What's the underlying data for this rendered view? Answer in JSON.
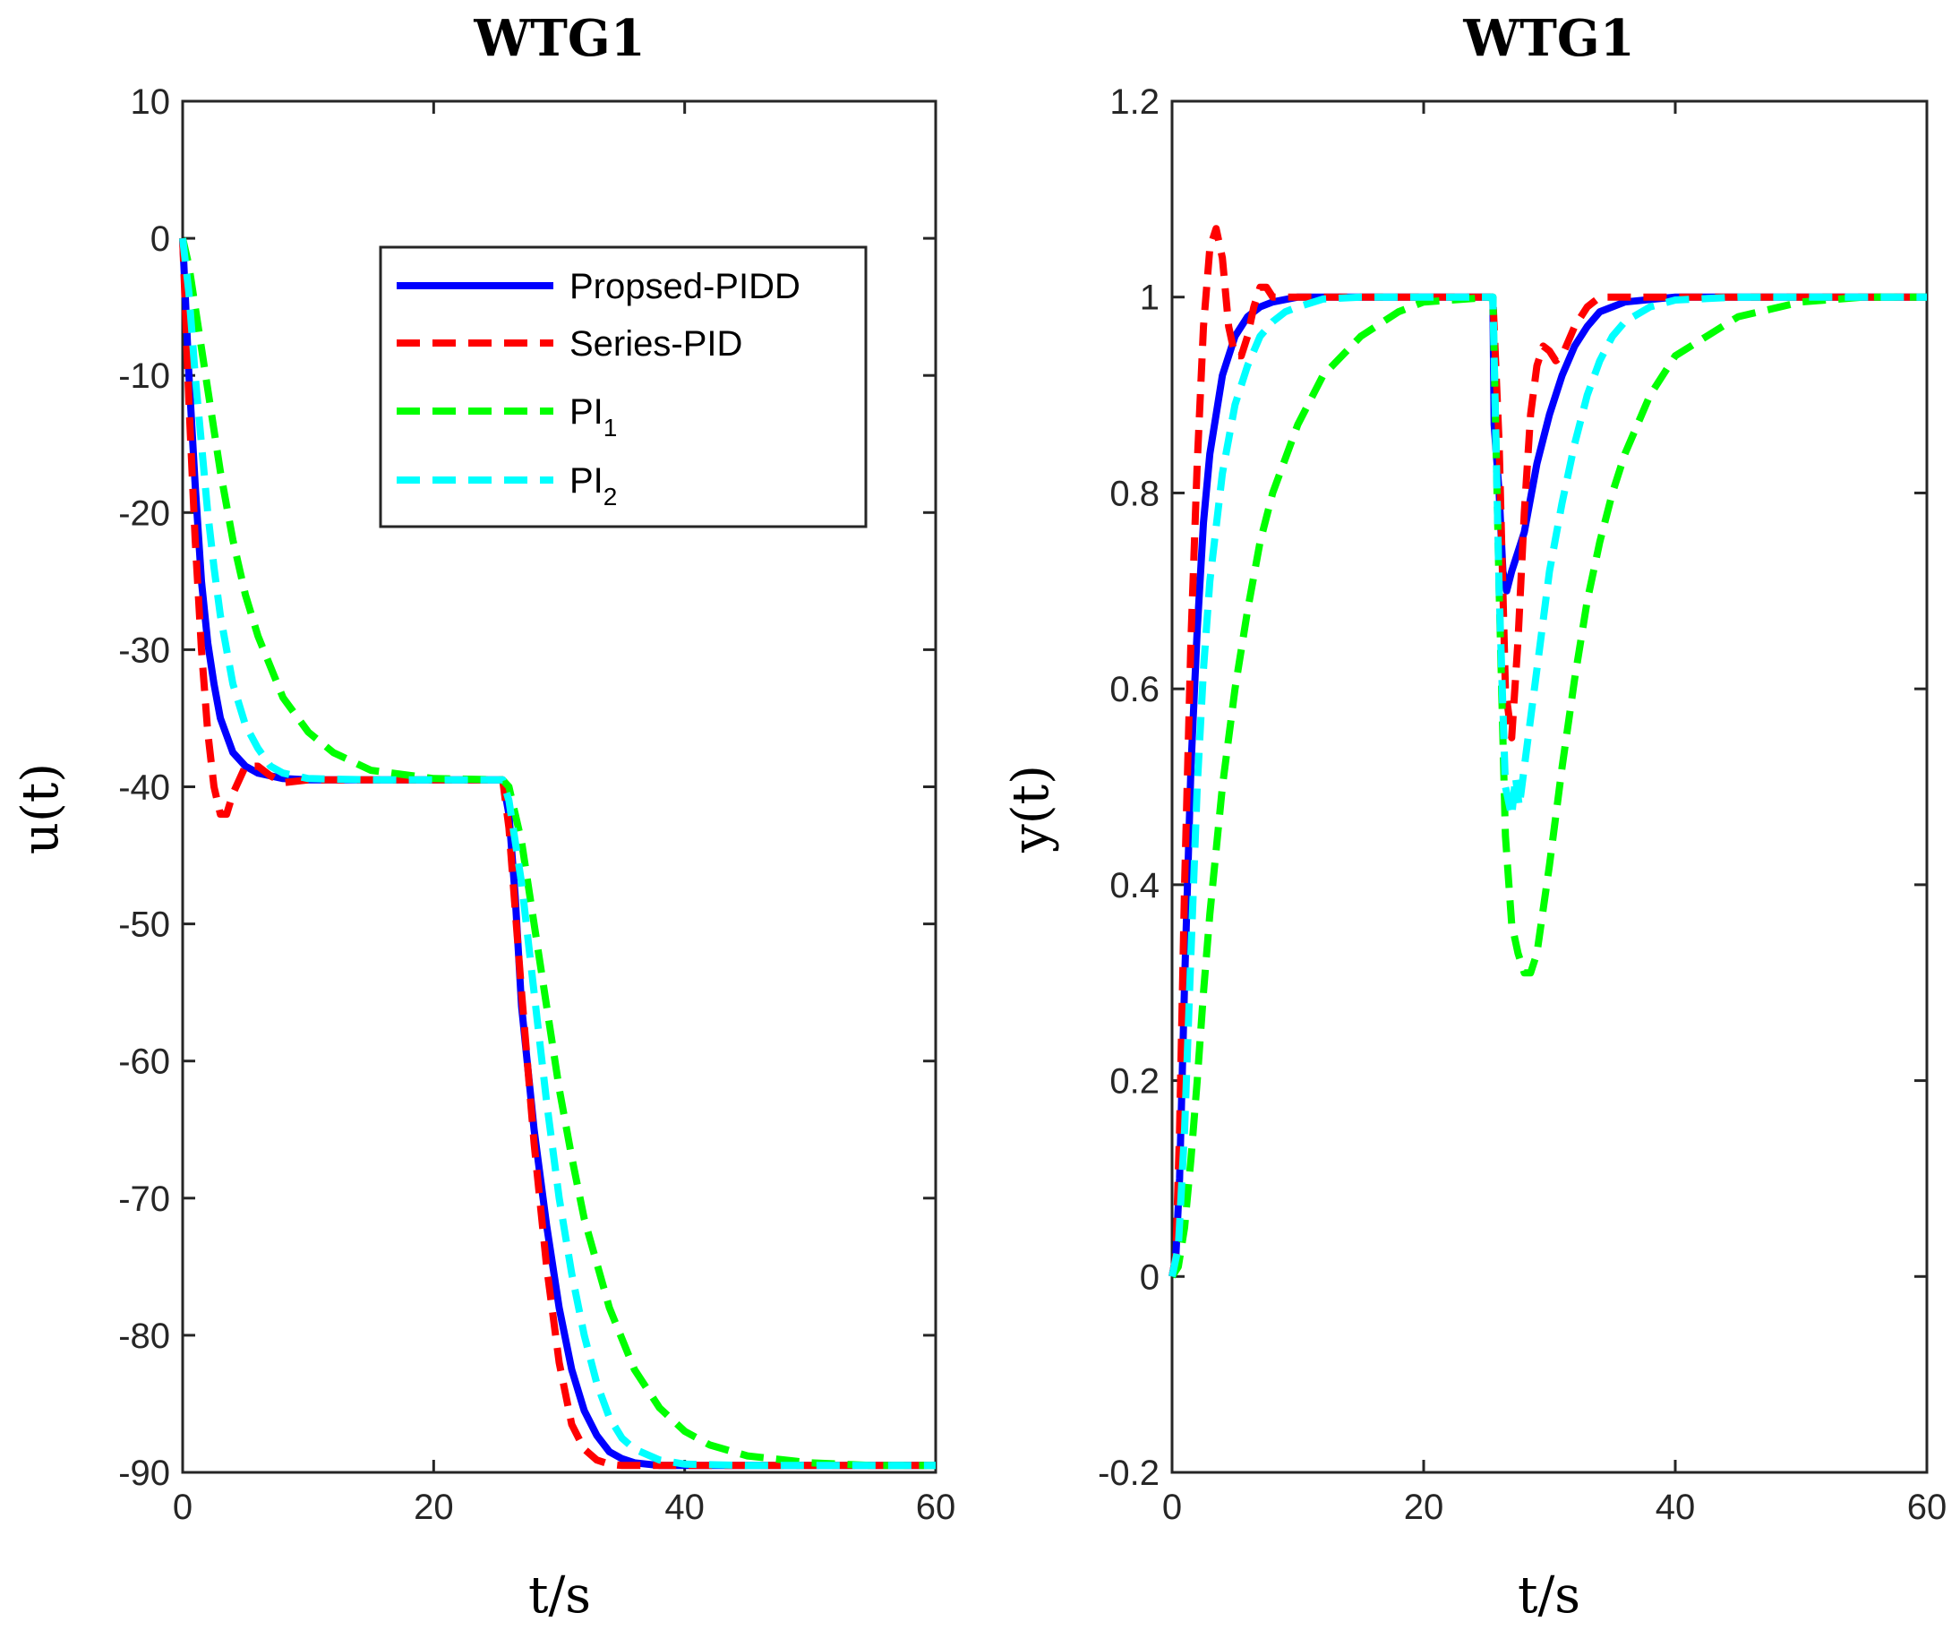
{
  "chart_data": [
    {
      "type": "line",
      "title": "WTG1",
      "xlabel": "t/s",
      "ylabel": "u(t)",
      "xlim": [
        0,
        60
      ],
      "ylim": [
        -90,
        10
      ],
      "xticks": [
        "0",
        "20",
        "40",
        "60"
      ],
      "yticks": [
        "-90",
        "-80",
        "-70",
        "-60",
        "-50",
        "-40",
        "-30",
        "-20",
        "-10",
        "0",
        "10"
      ],
      "grid": false,
      "legend": {
        "location": "top-right",
        "entries": [
          {
            "label": "Propsed-PIDD",
            "sub": ""
          },
          {
            "label": "Series-PID",
            "sub": ""
          },
          {
            "label": "PI",
            "sub": "1"
          },
          {
            "label": "PI",
            "sub": "2"
          }
        ]
      },
      "series": [
        {
          "name": "Propsed-PIDD",
          "color": "#0000ff",
          "style": "solid",
          "x": [
            0,
            0.5,
            1,
            1.5,
            2,
            2.5,
            3,
            4,
            5,
            6,
            8,
            10,
            15,
            20,
            25.5,
            26,
            26.5,
            27,
            28,
            29,
            30,
            31,
            32,
            33,
            34,
            35,
            36,
            38,
            40,
            45,
            50,
            60
          ],
          "y": [
            0,
            -10,
            -18,
            -25,
            -29.5,
            -32.5,
            -35,
            -37.5,
            -38.5,
            -39,
            -39.4,
            -39.5,
            -39.5,
            -39.5,
            -39.5,
            -42,
            -48,
            -56,
            -65,
            -72,
            -78,
            -82.5,
            -85.5,
            -87.3,
            -88.5,
            -89,
            -89.3,
            -89.5,
            -89.5,
            -89.5,
            -89.5,
            -89.5
          ]
        },
        {
          "name": "Series-PID",
          "color": "#ff0000",
          "style": "dashed",
          "x": [
            0,
            0.5,
            1,
            1.5,
            2,
            2.5,
            3,
            3.5,
            4,
            5,
            6,
            7,
            8,
            10,
            15,
            20,
            25.5,
            26,
            27,
            28,
            29,
            30,
            31,
            32,
            33,
            34,
            35,
            36,
            38,
            40,
            50,
            60
          ],
          "y": [
            0,
            -12,
            -22,
            -30,
            -36,
            -40,
            -42,
            -42,
            -40.5,
            -38.5,
            -38.5,
            -39.2,
            -39.7,
            -39.5,
            -39.5,
            -39.5,
            -39.5,
            -43,
            -55,
            -66,
            -75,
            -82,
            -86.5,
            -88.3,
            -89.1,
            -89.4,
            -89.5,
            -89.5,
            -89.5,
            -89.5,
            -89.5,
            -89.5
          ]
        },
        {
          "name": "PI1",
          "color": "#00ff00",
          "style": "dashed",
          "x": [
            0,
            0.5,
            1,
            1.5,
            2,
            3,
            4,
            5,
            6,
            8,
            10,
            12,
            15,
            20,
            25.5,
            26,
            27,
            28,
            29,
            30,
            31,
            32,
            34,
            36,
            38,
            40,
            42,
            45,
            50,
            55,
            60
          ],
          "y": [
            0,
            -2,
            -5,
            -8,
            -11,
            -17,
            -22,
            -26,
            -29,
            -33.5,
            -36,
            -37.5,
            -38.8,
            -39.4,
            -39.5,
            -40,
            -44,
            -50,
            -56,
            -62,
            -67,
            -71.5,
            -78,
            -82.5,
            -85.3,
            -87,
            -88,
            -88.8,
            -89.3,
            -89.5,
            -89.5
          ]
        },
        {
          "name": "PI2",
          "color": "#00ffff",
          "style": "dashed",
          "x": [
            0,
            0.5,
            1,
            1.5,
            2,
            2.5,
            3,
            4,
            5,
            6,
            7,
            8,
            10,
            15,
            20,
            25.5,
            26,
            27,
            28,
            29,
            30,
            31,
            32,
            33,
            34,
            35,
            36,
            38,
            40,
            45,
            50,
            60
          ],
          "y": [
            0,
            -4,
            -10,
            -15,
            -20,
            -24,
            -27.5,
            -32.5,
            -35.5,
            -37.2,
            -38.5,
            -39,
            -39.4,
            -39.5,
            -39.5,
            -39.5,
            -41,
            -47,
            -55,
            -63,
            -70,
            -75.5,
            -80,
            -83.5,
            -86,
            -87.5,
            -88.3,
            -89.1,
            -89.4,
            -89.5,
            -89.5,
            -89.5
          ]
        }
      ]
    },
    {
      "type": "line",
      "title": "WTG1",
      "xlabel": "t/s",
      "ylabel": "y(t)",
      "xlim": [
        0,
        60
      ],
      "ylim": [
        -0.2,
        1.2
      ],
      "xticks": [
        "0",
        "20",
        "40",
        "60"
      ],
      "yticks": [
        "-0.2",
        "0",
        "0.2",
        "0.4",
        "0.6",
        "0.8",
        "1",
        "1.2"
      ],
      "grid": false,
      "series": [
        {
          "name": "Propsed-PIDD",
          "color": "#0000ff",
          "style": "solid",
          "x": [
            0,
            0.3,
            0.6,
            1,
            1.5,
            2,
            2.5,
            3,
            4,
            5,
            6,
            7,
            8,
            10,
            15,
            20,
            25.5,
            25.6,
            26,
            26.3,
            26.6,
            27,
            27.5,
            28,
            29,
            30,
            31,
            32,
            33,
            34,
            36,
            40,
            50,
            60
          ],
          "y": [
            0,
            0.02,
            0.1,
            0.3,
            0.52,
            0.66,
            0.77,
            0.84,
            0.92,
            0.96,
            0.98,
            0.99,
            0.995,
            1,
            1,
            1,
            1,
            0.87,
            0.8,
            0.72,
            0.7,
            0.72,
            0.74,
            0.76,
            0.83,
            0.88,
            0.92,
            0.95,
            0.97,
            0.985,
            0.995,
            1,
            1,
            1
          ]
        },
        {
          "name": "Series-PID",
          "color": "#ff0000",
          "style": "dashed",
          "x": [
            0,
            0.3,
            0.6,
            1,
            1.5,
            2,
            2.5,
            3,
            3.5,
            4,
            4.5,
            5,
            5.5,
            6,
            6.5,
            7,
            7.5,
            8,
            9,
            10,
            15,
            20,
            25.5,
            26,
            26.5,
            27,
            27.5,
            28,
            28.5,
            29,
            29.5,
            30,
            30.5,
            31,
            32,
            33,
            34,
            35,
            40,
            50,
            60
          ],
          "y": [
            0,
            0.02,
            0.15,
            0.4,
            0.65,
            0.83,
            0.97,
            1.05,
            1.07,
            1.04,
            0.97,
            0.94,
            0.94,
            0.96,
            0.99,
            1.01,
            1.01,
            1.0,
            1.0,
            1.0,
            1.0,
            1.0,
            1.0,
            0.85,
            0.6,
            0.55,
            0.65,
            0.78,
            0.88,
            0.93,
            0.95,
            0.945,
            0.935,
            0.94,
            0.97,
            0.99,
            1.0,
            1.0,
            1.0,
            1.0,
            1.0
          ]
        },
        {
          "name": "PI1",
          "color": "#00ff00",
          "style": "dashed",
          "x": [
            0,
            0.5,
            1,
            1.5,
            2,
            2.5,
            3,
            4,
            5,
            6,
            7,
            8,
            10,
            12,
            15,
            18,
            20,
            25.5,
            26,
            26.5,
            27,
            27.5,
            28,
            28.5,
            29,
            30,
            31,
            32,
            33,
            34,
            35,
            36,
            38,
            40,
            45,
            50,
            55,
            60
          ],
          "y": [
            0,
            0.01,
            0.05,
            0.12,
            0.2,
            0.29,
            0.37,
            0.5,
            0.6,
            0.68,
            0.75,
            0.8,
            0.87,
            0.92,
            0.96,
            0.985,
            0.995,
            1,
            0.7,
            0.45,
            0.36,
            0.33,
            0.31,
            0.31,
            0.33,
            0.42,
            0.52,
            0.61,
            0.69,
            0.75,
            0.8,
            0.84,
            0.9,
            0.94,
            0.98,
            0.995,
            1,
            1
          ]
        },
        {
          "name": "PI2",
          "color": "#00ffff",
          "style": "dashed",
          "x": [
            0,
            0.5,
            1,
            1.5,
            2,
            2.5,
            3,
            4,
            5,
            6,
            7,
            8,
            9,
            10,
            12,
            15,
            20,
            25.5,
            26,
            26.5,
            27,
            27.3,
            27.6,
            28,
            29,
            30,
            31,
            32,
            33,
            34,
            35,
            36,
            38,
            40,
            45,
            50,
            60
          ],
          "y": [
            0,
            0.03,
            0.15,
            0.33,
            0.5,
            0.62,
            0.71,
            0.82,
            0.89,
            0.93,
            0.96,
            0.975,
            0.985,
            0.99,
            0.998,
            1,
            1,
            1,
            0.7,
            0.5,
            0.47,
            0.51,
            0.48,
            0.52,
            0.62,
            0.72,
            0.79,
            0.85,
            0.9,
            0.935,
            0.96,
            0.975,
            0.99,
            0.997,
            1,
            1,
            1
          ]
        }
      ]
    }
  ]
}
